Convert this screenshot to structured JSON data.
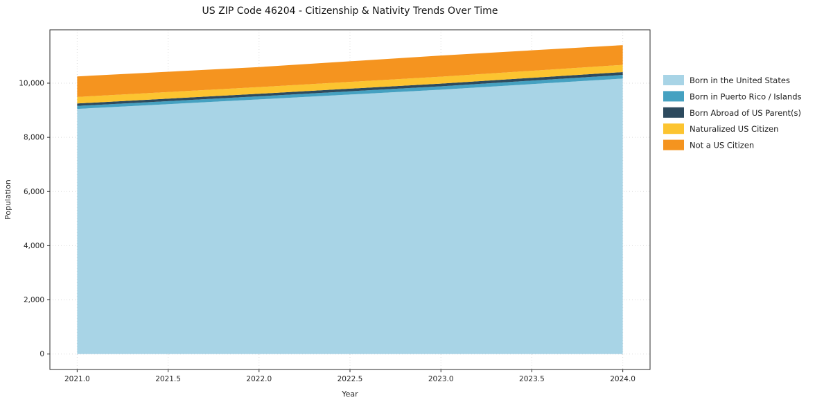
{
  "title": "US ZIP Code 46204 - Citizenship &amp; Nativity Trends Over Time",
  "title_plain": "US ZIP Code 46204 - Citizenship & Nativity Trends Over Time",
  "chart_data": {
    "type": "area",
    "stacked": true,
    "x": [
      2021,
      2022,
      2023,
      2024
    ],
    "series": [
      {
        "name": "Born in the United States",
        "color": "#a8d4e6",
        "values": [
          9050,
          9400,
          9760,
          10170
        ]
      },
      {
        "name": "Born in Puerto Rico / Islands",
        "color": "#45a1c1",
        "values": [
          110,
          115,
          125,
          135
        ]
      },
      {
        "name": "Born Abroad of US Parent(s)",
        "color": "#2d4a5e",
        "values": [
          90,
          95,
          100,
          105
        ]
      },
      {
        "name": "Naturalized US Citizen",
        "color": "#fcc430",
        "values": [
          240,
          245,
          255,
          265
        ]
      },
      {
        "name": "Not a US Citizen",
        "color": "#f5941f",
        "values": [
          760,
          740,
          780,
          730
        ]
      }
    ],
    "title": "US ZIP Code 46204 - Citizenship & Nativity Trends Over Time",
    "xlabel": "Year",
    "ylabel": "Population",
    "xtick_labels": [
      "2021.0",
      "2021.5",
      "2022.0",
      "2022.5",
      "2023.0",
      "2023.5",
      "2024.0"
    ],
    "xtick_values": [
      2021,
      2021.5,
      2022,
      2022.5,
      2023,
      2023.5,
      2024
    ],
    "ytick_values": [
      0,
      2000,
      4000,
      6000,
      8000,
      10000
    ],
    "xlim": [
      2020.85,
      2024.15
    ],
    "ylim": [
      -570,
      11970
    ],
    "grid": true,
    "legend_position": "right"
  }
}
